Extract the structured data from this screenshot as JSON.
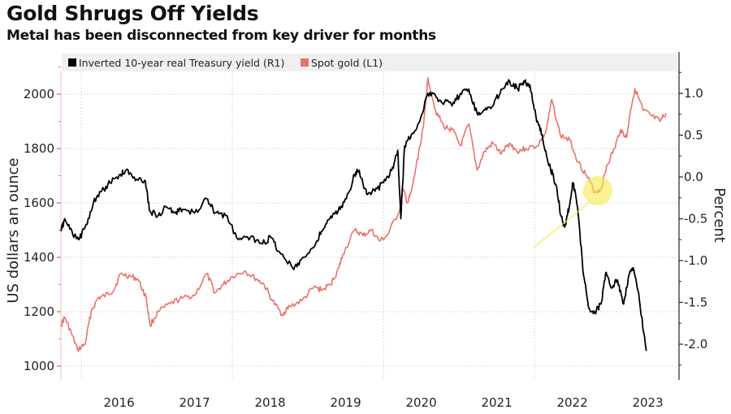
{
  "header": {
    "title": "Gold Shrugs Off Yields",
    "subtitle": "Metal has been disconnected from key driver for months"
  },
  "colors": {
    "gold": "#e8736b",
    "yield": "#000000",
    "highlight": "#f5ea4a",
    "grid": "#d8d8d8",
    "legend_bg": "#f0f0f0"
  },
  "chart_data": {
    "type": "line",
    "title": "Gold Shrugs Off Yields",
    "subtitle": "Metal has been disconnected from key driver for months",
    "xlabel": "",
    "ylabel_left": "US dollars an ounce",
    "ylabel_right": "Percent",
    "x_range": [
      2015.73,
      2023.72
    ],
    "x_ticks": [
      "2016",
      "2017",
      "2018",
      "2019",
      "2020",
      "2021",
      "2022",
      "2023"
    ],
    "ylim_left": [
      960,
      2100
    ],
    "ylim_right": [
      -2.35,
      1.42
    ],
    "y_ticks_left": [
      "1000",
      "1200",
      "1400",
      "1600",
      "1800",
      "2000"
    ],
    "y_ticks_right": [
      "-2.0",
      "-1.5",
      "-1.0",
      "-0.5",
      "0.0",
      "0.5",
      "1.0"
    ],
    "grid": true,
    "legend_position": "top-left",
    "legend": [
      "Inverted 10-year real Treasury yield (R1)",
      "Spot gold (L1)"
    ],
    "annotation": "yellow highlight circle with arrow near mid-2022 gold low",
    "series": [
      {
        "name": "Inverted 10-year real Treasury yield (R1)",
        "axis": "right",
        "x": [
          2015.73,
          2015.78,
          2015.89,
          2015.97,
          2016.05,
          2016.16,
          2016.27,
          2016.38,
          2016.52,
          2016.59,
          2016.7,
          2016.84,
          2016.91,
          2017.02,
          2017.13,
          2017.24,
          2017.34,
          2017.5,
          2017.66,
          2017.77,
          2017.91,
          2018.08,
          2018.24,
          2018.4,
          2018.51,
          2018.62,
          2018.8,
          2018.91,
          2019.08,
          2019.18,
          2019.29,
          2019.4,
          2019.51,
          2019.62,
          2019.68,
          2019.78,
          2019.89,
          2020.0,
          2020.11,
          2020.19,
          2020.23,
          2020.28,
          2020.37,
          2020.48,
          2020.59,
          2020.7,
          2020.81,
          2020.91,
          2021.02,
          2021.13,
          2021.24,
          2021.34,
          2021.45,
          2021.56,
          2021.67,
          2021.78,
          2021.86,
          2021.94,
          2022.03,
          2022.1,
          2022.18,
          2022.24,
          2022.3,
          2022.35,
          2022.4,
          2022.46,
          2022.51,
          2022.57,
          2022.65,
          2022.72,
          2022.8,
          2022.88,
          2022.95,
          2023.02,
          2023.1,
          2023.18,
          2023.25,
          2023.31,
          2023.39,
          2023.48
        ],
        "values": [
          -0.65,
          -0.5,
          -0.7,
          -0.75,
          -0.6,
          -0.31,
          -0.17,
          -0.07,
          0.03,
          0.08,
          0.0,
          -0.04,
          -0.41,
          -0.46,
          -0.36,
          -0.43,
          -0.39,
          -0.43,
          -0.26,
          -0.43,
          -0.46,
          -0.75,
          -0.72,
          -0.8,
          -0.72,
          -0.89,
          -1.09,
          -0.99,
          -0.84,
          -0.65,
          -0.5,
          -0.41,
          -0.26,
          0.03,
          0.08,
          -0.21,
          -0.17,
          -0.07,
          0.08,
          0.32,
          -0.5,
          0.37,
          0.51,
          0.66,
          1.0,
          0.95,
          0.9,
          0.85,
          1.0,
          1.05,
          0.76,
          0.8,
          0.85,
          1.05,
          1.15,
          1.05,
          1.15,
          1.1,
          0.66,
          0.51,
          0.17,
          0.03,
          -0.17,
          -0.46,
          -0.6,
          -0.36,
          -0.07,
          -0.36,
          -1.18,
          -1.57,
          -1.62,
          -1.52,
          -1.14,
          -1.33,
          -1.23,
          -1.52,
          -1.17,
          -1.09,
          -1.48,
          -2.08
        ]
      },
      {
        "name": "Spot gold (L1)",
        "axis": "left",
        "x": [
          2015.73,
          2015.78,
          2015.87,
          2015.95,
          2016.05,
          2016.13,
          2016.22,
          2016.32,
          2016.43,
          2016.52,
          2016.65,
          2016.75,
          2016.86,
          2016.91,
          2017.02,
          2017.18,
          2017.34,
          2017.5,
          2017.66,
          2017.77,
          2017.88,
          2018.0,
          2018.16,
          2018.32,
          2018.42,
          2018.53,
          2018.66,
          2018.76,
          2018.92,
          2019.08,
          2019.19,
          2019.3,
          2019.41,
          2019.46,
          2019.62,
          2019.73,
          2019.84,
          2019.95,
          2020.05,
          2020.21,
          2020.26,
          2020.32,
          2020.37,
          2020.43,
          2020.53,
          2020.59,
          2020.69,
          2020.8,
          2020.91,
          2021.02,
          2021.13,
          2021.24,
          2021.34,
          2021.45,
          2021.56,
          2021.67,
          2021.77,
          2021.88,
          2022.04,
          2022.15,
          2022.23,
          2022.34,
          2022.47,
          2022.58,
          2022.69,
          2022.8,
          2022.88,
          2022.96,
          2023.06,
          2023.14,
          2023.22,
          2023.27,
          2023.33,
          2023.44,
          2023.55,
          2023.66,
          2023.74
        ],
        "values": [
          1150,
          1180,
          1120,
          1060,
          1080,
          1200,
          1250,
          1260,
          1280,
          1340,
          1330,
          1320,
          1250,
          1150,
          1200,
          1230,
          1250,
          1260,
          1340,
          1270,
          1300,
          1330,
          1350,
          1320,
          1300,
          1240,
          1190,
          1220,
          1240,
          1290,
          1280,
          1300,
          1360,
          1410,
          1500,
          1480,
          1500,
          1460,
          1480,
          1570,
          1650,
          1600,
          1640,
          1730,
          1880,
          2060,
          1940,
          1880,
          1870,
          1810,
          1890,
          1720,
          1790,
          1820,
          1780,
          1820,
          1790,
          1800,
          1810,
          1860,
          1980,
          1850,
          1830,
          1750,
          1700,
          1640,
          1650,
          1740,
          1800,
          1870,
          1840,
          1940,
          2020,
          1940,
          1920,
          1900,
          1930
        ]
      }
    ]
  }
}
